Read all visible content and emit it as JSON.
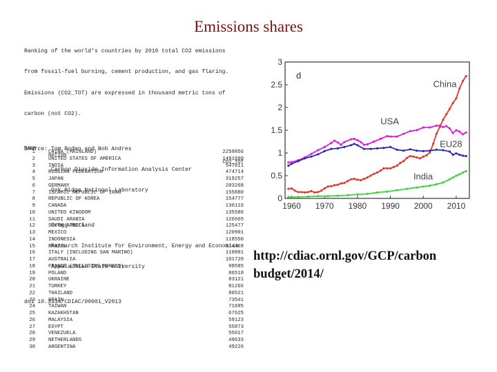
{
  "title": "Emissions shares",
  "notes": [
    "Ranking of the world's countries by 2010 total CO2 emissions",
    "from fossil-fuel burning, cement production, and gas flaring.",
    "Emissions (CO2_TOT) are expressed in thousand metric tons of",
    "carbon (not CO2).",
    "",
    "Source: Tom Boden and Bob Andres",
    "        Carbon Dioxide Information Analysis Center",
    "        Oak Ridge National Laboratory",
    "",
    "        Gregg Marland",
    "        Research Institute for Environment, Energy and Economics",
    "        Appalachian State University",
    "",
    "doi 10.3334/CDIAC/00001_V2013"
  ],
  "table": {
    "headers": {
      "rank": "RANK",
      "nation": "NATION",
      "value": "CO2_TOT"
    },
    "rows": [
      {
        "rank": "1",
        "nation": "CHINA (MAINLAND)",
        "value": "2259856"
      },
      {
        "rank": "2",
        "nation": "UNITED STATES OF AMERICA",
        "value": "1481600"
      },
      {
        "rank": "3",
        "nation": "INDIA",
        "value": "547811"
      },
      {
        "rank": "4",
        "nation": "RUSSIAN FEDERATION",
        "value": "474714"
      },
      {
        "rank": "5",
        "nation": "JAPAN",
        "value": "319257"
      },
      {
        "rank": "6",
        "nation": "GERMANY",
        "value": "203268"
      },
      {
        "rank": "7",
        "nation": "ISLAMIC REPUBLIC OF IRAN",
        "value": "155880"
      },
      {
        "rank": "8",
        "nation": "REPUBLIC OF KOREA",
        "value": "154777"
      },
      {
        "rank": "9",
        "nation": "CANADA",
        "value": "136116"
      },
      {
        "rank": "10",
        "nation": "UNITED KINGDOM",
        "value": "135586"
      },
      {
        "rank": "11",
        "nation": "SAUDI ARABIA",
        "value": "126665"
      },
      {
        "rank": "12",
        "nation": "SOUTH AFRICA",
        "value": "125477"
      },
      {
        "rank": "13",
        "nation": "MEXICO",
        "value": "120901"
      },
      {
        "rank": "14",
        "nation": "INDONESIA",
        "value": "118550"
      },
      {
        "rank": "15",
        "nation": "BRAZIL",
        "value": "114468"
      },
      {
        "rank": "16",
        "nation": "ITALY (INCLUDING SAN MARINO)",
        "value": "110801"
      },
      {
        "rank": "17",
        "nation": "AUSTRALIA",
        "value": "101720"
      },
      {
        "rank": "18",
        "nation": "FRANCE (INCLUDING MONACO)",
        "value": "98585"
      },
      {
        "rank": "19",
        "nation": "POLAND",
        "value": "86518"
      },
      {
        "rank": "20",
        "nation": "UKRAINE",
        "value": "83121"
      },
      {
        "rank": "21",
        "nation": "TURKEY",
        "value": "81266"
      },
      {
        "rank": "22",
        "nation": "THAILAND",
        "value": "80521"
      },
      {
        "rank": "23",
        "nation": "SPAIN",
        "value": "73541"
      },
      {
        "rank": "24",
        "nation": "TAIWAN",
        "value": "71695"
      },
      {
        "rank": "25",
        "nation": "KAZAKHSTAN",
        "value": "67625"
      },
      {
        "rank": "26",
        "nation": "MALAYSIA",
        "value": "59123"
      },
      {
        "rank": "27",
        "nation": "EGYPT",
        "value": "55873"
      },
      {
        "rank": "28",
        "nation": "VENEZUELA",
        "value": "55617"
      },
      {
        "rank": "29",
        "nation": "NETHERLANDS",
        "value": "49633"
      },
      {
        "rank": "30",
        "nation": "ARGENTINA",
        "value": "49226"
      }
    ]
  },
  "link_lines": [
    "http://cdiac.ornl.gov/GCP/carbon",
    "budget/2014/"
  ],
  "chart_data": {
    "type": "line",
    "title": "",
    "panel_label": "d",
    "xlabel": "",
    "ylabel": "",
    "xlim": [
      1958,
      2014
    ],
    "ylim": [
      0,
      3
    ],
    "xticks": [
      1960,
      1970,
      1980,
      1990,
      2000,
      2010
    ],
    "yticks": [
      0,
      0.5,
      1,
      1.5,
      2,
      2.5,
      3
    ],
    "grid": false,
    "legend": "inline labels",
    "series": [
      {
        "name": "China",
        "color": "#e0382c",
        "label_at": [
          2003,
          2.45
        ],
        "x": [
          1959,
          1960,
          1961,
          1962,
          1963,
          1964,
          1965,
          1966,
          1967,
          1968,
          1969,
          1970,
          1971,
          1972,
          1973,
          1974,
          1975,
          1976,
          1977,
          1978,
          1979,
          1980,
          1981,
          1982,
          1983,
          1984,
          1985,
          1986,
          1987,
          1988,
          1989,
          1990,
          1991,
          1992,
          1993,
          1994,
          1995,
          1996,
          1997,
          1998,
          1999,
          2000,
          2001,
          2002,
          2003,
          2004,
          2005,
          2006,
          2007,
          2008,
          2009,
          2010,
          2011,
          2012,
          2013
        ],
        "y": [
          0.21,
          0.22,
          0.17,
          0.14,
          0.14,
          0.13,
          0.14,
          0.16,
          0.13,
          0.14,
          0.17,
          0.22,
          0.26,
          0.27,
          0.29,
          0.3,
          0.33,
          0.34,
          0.38,
          0.42,
          0.43,
          0.41,
          0.4,
          0.43,
          0.46,
          0.5,
          0.54,
          0.57,
          0.61,
          0.66,
          0.66,
          0.66,
          0.69,
          0.72,
          0.78,
          0.82,
          0.89,
          0.93,
          0.92,
          0.9,
          0.88,
          0.92,
          0.95,
          1.01,
          1.2,
          1.42,
          1.57,
          1.73,
          1.85,
          1.97,
          2.1,
          2.2,
          2.42,
          2.58,
          2.69
        ]
      },
      {
        "name": "USA",
        "color": "#e01be0",
        "label_at": [
          1987,
          1.63
        ],
        "x": [
          1959,
          1960,
          1962,
          1964,
          1966,
          1968,
          1970,
          1972,
          1973,
          1974,
          1975,
          1976,
          1978,
          1979,
          1980,
          1981,
          1982,
          1983,
          1985,
          1987,
          1989,
          1990,
          1992,
          1994,
          1996,
          1998,
          2000,
          2002,
          2004,
          2005,
          2006,
          2007,
          2008,
          2009,
          2010,
          2011,
          2012,
          2013
        ],
        "y": [
          0.79,
          0.8,
          0.84,
          0.9,
          0.98,
          1.06,
          1.13,
          1.22,
          1.27,
          1.23,
          1.18,
          1.24,
          1.3,
          1.31,
          1.28,
          1.24,
          1.18,
          1.19,
          1.25,
          1.31,
          1.37,
          1.36,
          1.36,
          1.42,
          1.48,
          1.5,
          1.56,
          1.56,
          1.6,
          1.6,
          1.57,
          1.59,
          1.54,
          1.44,
          1.5,
          1.47,
          1.41,
          1.45
        ]
      },
      {
        "name": "EU28",
        "color": "#2a2ab0",
        "label_at": [
          2005,
          1.13
        ],
        "x": [
          1959,
          1960,
          1962,
          1964,
          1966,
          1968,
          1970,
          1972,
          1974,
          1976,
          1978,
          1979,
          1980,
          1982,
          1984,
          1986,
          1988,
          1990,
          1992,
          1994,
          1996,
          1998,
          2000,
          2002,
          2004,
          2006,
          2008,
          2009,
          2010,
          2011,
          2012,
          2013
        ],
        "y": [
          0.72,
          0.76,
          0.82,
          0.88,
          0.92,
          0.97,
          1.04,
          1.09,
          1.1,
          1.13,
          1.17,
          1.2,
          1.17,
          1.09,
          1.09,
          1.1,
          1.11,
          1.13,
          1.07,
          1.05,
          1.08,
          1.05,
          1.04,
          1.05,
          1.07,
          1.06,
          1.03,
          0.96,
          0.99,
          0.96,
          0.94,
          0.93
        ]
      },
      {
        "name": "India",
        "color": "#3cd23c",
        "label_at": [
          1997,
          0.42
        ],
        "x": [
          1959,
          1962,
          1965,
          1968,
          1971,
          1974,
          1977,
          1980,
          1983,
          1986,
          1989,
          1992,
          1995,
          1998,
          2000,
          2002,
          2004,
          2006,
          2008,
          2009,
          2010,
          2011,
          2012,
          2013
        ],
        "y": [
          0.03,
          0.03,
          0.04,
          0.05,
          0.05,
          0.06,
          0.07,
          0.09,
          0.1,
          0.13,
          0.15,
          0.18,
          0.21,
          0.24,
          0.26,
          0.28,
          0.31,
          0.35,
          0.42,
          0.46,
          0.5,
          0.53,
          0.57,
          0.6
        ]
      }
    ]
  }
}
